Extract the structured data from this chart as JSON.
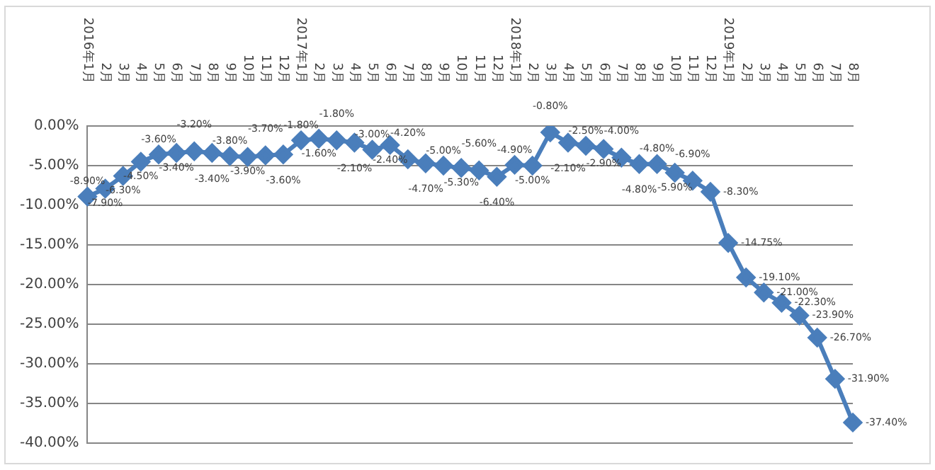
{
  "chart_data": {
    "type": "line",
    "categories": [
      "2016年1月",
      "2月",
      "3月",
      "4月",
      "5月",
      "6月",
      "7月",
      "8月",
      "9月",
      "10月",
      "11月",
      "12月",
      "2017年1月",
      "2月",
      "3月",
      "4月",
      "5月",
      "6月",
      "7月",
      "8月",
      "9月",
      "10月",
      "11月",
      "12月",
      "2018年1月",
      "2月",
      "3月",
      "4月",
      "5月",
      "6月",
      "7月",
      "8月",
      "9月",
      "10月",
      "11月",
      "12月",
      "2019年1月",
      "2月",
      "3月",
      "4月",
      "5月",
      "6月",
      "7月",
      "8月"
    ],
    "series": [
      {
        "color": "#4a7ebb",
        "values": [
          -8.9,
          -7.9,
          -6.3,
          -4.5,
          -3.6,
          -3.4,
          -3.2,
          -3.4,
          -3.8,
          -3.9,
          -3.7,
          -3.6,
          -1.8,
          -1.6,
          -1.8,
          -2.1,
          -3.0,
          -2.4,
          -4.2,
          -4.7,
          -5.0,
          -5.3,
          -5.6,
          -6.4,
          -4.9,
          -5.0,
          -0.8,
          -2.1,
          -2.5,
          -2.9,
          -4.0,
          -4.8,
          -4.8,
          -5.9,
          -6.9,
          -8.3,
          -14.75,
          -19.1,
          -21.0,
          -22.3,
          -23.9,
          -26.7,
          -31.9,
          -37.4
        ],
        "value_labels": [
          "-8.90%",
          "-7.90%",
          "-6.30%",
          "-4.50%",
          "-3.60%",
          "-3.40%",
          "-3.20%",
          "-3.40%",
          "-3.80%",
          "-3.90%",
          "-3.70%",
          "-3.60%",
          "-1.80%",
          "-1.60%",
          "-1.80%",
          "-2.10%",
          "-3.00%",
          "-2.40%",
          "-4.20%",
          "-4.70%",
          "-5.00%",
          "-5.30%",
          "-5.60%",
          "-6.40%",
          "-4.90%",
          "-5.00%",
          "-0.80%",
          "-2.10%",
          "-2.50%",
          "-2.90%",
          "-4.00%",
          "-4.80%",
          "-4.80%",
          "-5.90%",
          "-6.90%",
          "-8.30%",
          "-14.75%",
          "-19.10%",
          "-21.00%",
          "-22.30%",
          "-23.90%",
          "-26.70%",
          "-31.90%",
          "-37.40%"
        ]
      }
    ],
    "ylim": [
      -40,
      0
    ],
    "yticks": [
      {
        "value": -40,
        "label": "-40.00%"
      },
      {
        "value": -35,
        "label": "-35.00%"
      },
      {
        "value": -30,
        "label": "-30.00%"
      },
      {
        "value": -25,
        "label": "-25.00%"
      },
      {
        "value": -20,
        "label": "-20.00%"
      },
      {
        "value": -15,
        "label": "-15.00%"
      },
      {
        "value": -10,
        "label": "-10.00%"
      },
      {
        "value": -5,
        "label": "-5.00%"
      },
      {
        "value": 0,
        "label": "0.00%"
      }
    ],
    "grid": "y",
    "marker": "diamond",
    "line_style": "solid",
    "legend": false
  }
}
